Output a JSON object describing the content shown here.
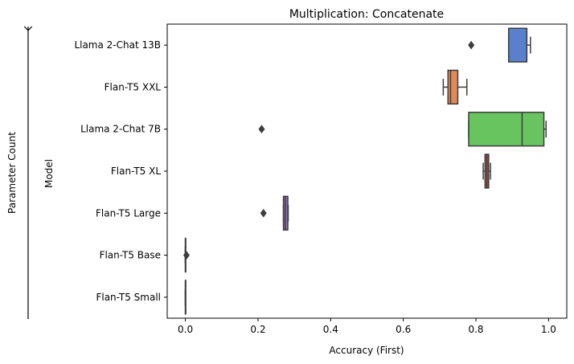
{
  "chart_data": {
    "type": "box",
    "title": "Multiplication: Concatenate",
    "xlabel": "Accuracy (First)",
    "ylabel": "Model",
    "side_label": "Parameter Count",
    "xlim": [
      -0.05,
      1.05
    ],
    "xticks": [
      0.0,
      0.2,
      0.4,
      0.6,
      0.8,
      1.0
    ],
    "xtick_labels": [
      "0.0",
      "0.2",
      "0.4",
      "0.6",
      "0.8",
      "1.0"
    ],
    "grid": false,
    "categories": [
      "Llama 2-Chat 13B",
      "Flan-T5 XXL",
      "Llama 2-Chat 7B",
      "Flan-T5 XL",
      "Flan-T5 Large",
      "Flan-T5 Base",
      "Flan-T5 Small"
    ],
    "boxes": [
      {
        "label": "Llama 2-Chat 13B",
        "color": "#5a7fcd",
        "whisker_low": 0.89,
        "q1": 0.89,
        "median": 0.94,
        "q3": 0.94,
        "whisker_high": 0.95,
        "outliers": [
          0.787
        ]
      },
      {
        "label": "Flan-T5 XXL",
        "color": "#e08a57",
        "whisker_low": 0.71,
        "q1": 0.723,
        "median": 0.73,
        "q3": 0.75,
        "whisker_high": 0.775,
        "outliers": []
      },
      {
        "label": "Llama 2-Chat 7B",
        "color": "#67c45f",
        "whisker_low": 0.78,
        "q1": 0.78,
        "median": 0.927,
        "q3": 0.987,
        "whisker_high": 0.993,
        "outliers": [
          0.21
        ]
      },
      {
        "label": "Flan-T5 XL",
        "color": "#c74b4b",
        "whisker_low": 0.82,
        "q1": 0.825,
        "median": 0.83,
        "q3": 0.835,
        "whisker_high": 0.84,
        "outliers": []
      },
      {
        "label": "Flan-T5 Large",
        "color": "#9270c0",
        "whisker_low": 0.27,
        "q1": 0.27,
        "median": 0.275,
        "q3": 0.282,
        "whisker_high": 0.283,
        "outliers": [
          0.215
        ]
      },
      {
        "label": "Flan-T5 Base",
        "color": "#8b5a4a",
        "whisker_low": 0.0,
        "q1": 0.0,
        "median": 0.0,
        "q3": 0.0,
        "whisker_high": 0.0,
        "outliers": [
          0.003
        ]
      },
      {
        "label": "Flan-T5 Small",
        "color": "#d683c4",
        "whisker_low": 0.0,
        "q1": 0.0,
        "median": 0.0,
        "q3": 0.0,
        "whisker_high": 0.0,
        "outliers": []
      }
    ]
  }
}
